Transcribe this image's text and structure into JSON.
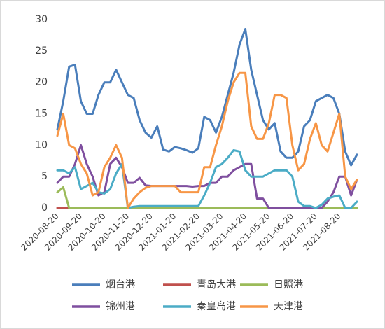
{
  "chart_data": {
    "type": "line",
    "categories": [
      "2020-08-20",
      null,
      null,
      null,
      "2020-09-20",
      null,
      null,
      null,
      "2020-10-20",
      null,
      null,
      null,
      "2020-11-20",
      null,
      null,
      null,
      "2020-12-20",
      null,
      null,
      null,
      "2021-01-20",
      null,
      null,
      null,
      "2021-02-20",
      null,
      null,
      null,
      "2021-03-20",
      null,
      null,
      null,
      "2021-04-20",
      null,
      null,
      null,
      "2021-05-20",
      null,
      null,
      null,
      "2021-06-20",
      null,
      null,
      null,
      "2021-07-20",
      null,
      null,
      null,
      "2021-08-20",
      null,
      null,
      null
    ],
    "series": [
      {
        "name": "烟台港",
        "color": "#4a7ebb",
        "values": [
          12.5,
          17,
          22.5,
          22.8,
          17,
          15,
          15,
          18,
          20,
          20,
          22,
          20,
          18,
          17.5,
          14,
          12,
          11.2,
          13,
          9.3,
          9,
          9.7,
          9.5,
          9.2,
          8.8,
          9.5,
          14.5,
          14,
          12,
          14.5,
          18,
          21.5,
          26,
          28.5,
          22,
          18,
          14,
          12.5,
          13.5,
          9,
          8,
          8,
          9,
          13,
          14,
          17,
          17.5,
          18,
          17.5,
          15,
          9,
          6.8,
          8.5
        ]
      },
      {
        "name": "青岛大港",
        "color": "#c0504d",
        "values": [
          0,
          0,
          0,
          0,
          0,
          0,
          0,
          0,
          0,
          0,
          0,
          0,
          0,
          0,
          0,
          0,
          0,
          0,
          0,
          0,
          0,
          0,
          0,
          0,
          0,
          0,
          0,
          0,
          0,
          0,
          0,
          0,
          0,
          0,
          0,
          0,
          0,
          0,
          0,
          0,
          0,
          0,
          0,
          0,
          0,
          0,
          0,
          0,
          0,
          0,
          0,
          0
        ]
      },
      {
        "name": "日照港",
        "color": "#9bbb59",
        "values": [
          2.5,
          3.3,
          0,
          0,
          0,
          0,
          0,
          0,
          0,
          0,
          0,
          0,
          0,
          0,
          0,
          0,
          0,
          0,
          0,
          0,
          0,
          0,
          0,
          0,
          0,
          0,
          0,
          0,
          0,
          0,
          0,
          0,
          0,
          0,
          0,
          0,
          0,
          0,
          0,
          0,
          0,
          0,
          0,
          0,
          0,
          0,
          0,
          0,
          0,
          0,
          0,
          0
        ]
      },
      {
        "name": "锦州港",
        "color": "#7f4f9f",
        "values": [
          4,
          5,
          5,
          7,
          10,
          7,
          5,
          2,
          2.5,
          7,
          8,
          6.5,
          4,
          4,
          4.8,
          3.6,
          3.5,
          3.5,
          3.5,
          3.5,
          3.5,
          3.5,
          3.5,
          3.4,
          3.5,
          3.5,
          4,
          4,
          5,
          5,
          6,
          6.5,
          7,
          7,
          1.5,
          1.5,
          0,
          0,
          0,
          0,
          0,
          0,
          0,
          0,
          0,
          0,
          1,
          2.5,
          5,
          5,
          2,
          4.5
        ]
      },
      {
        "name": "秦皇岛港",
        "color": "#4bacc6",
        "values": [
          6,
          6,
          5.5,
          6.5,
          3,
          3.5,
          4,
          2.5,
          2.3,
          3,
          5.5,
          7,
          0,
          0.2,
          0.3,
          0.3,
          0.3,
          0.3,
          0.3,
          0.3,
          0.3,
          0.3,
          0.3,
          0.3,
          0.3,
          2,
          4,
          6.5,
          7,
          8,
          9.2,
          9,
          6,
          5,
          5,
          5,
          5.5,
          6,
          6,
          6,
          5,
          1,
          0.3,
          0.3,
          0,
          0.5,
          1.5,
          1.8,
          2,
          0,
          0,
          1
        ]
      },
      {
        "name": "天津港",
        "color": "#f79646",
        "values": [
          11.5,
          15,
          10,
          9.5,
          7,
          5.5,
          2,
          2.5,
          6.5,
          8,
          10,
          8,
          0,
          1.5,
          2.5,
          3.2,
          3.5,
          3.5,
          3.5,
          3.5,
          3.5,
          2.5,
          2.5,
          2.5,
          2.5,
          6.5,
          6.5,
          10,
          13,
          17,
          20,
          21.5,
          21.5,
          13,
          11,
          11,
          13.5,
          18,
          18,
          17.5,
          10,
          6,
          7,
          11,
          13.5,
          10,
          9,
          12,
          15,
          5,
          3,
          4.5
        ]
      }
    ],
    "ylim": [
      0,
      30
    ],
    "yticks": [
      0,
      5,
      10,
      15,
      20,
      25,
      30
    ],
    "grid": false
  }
}
